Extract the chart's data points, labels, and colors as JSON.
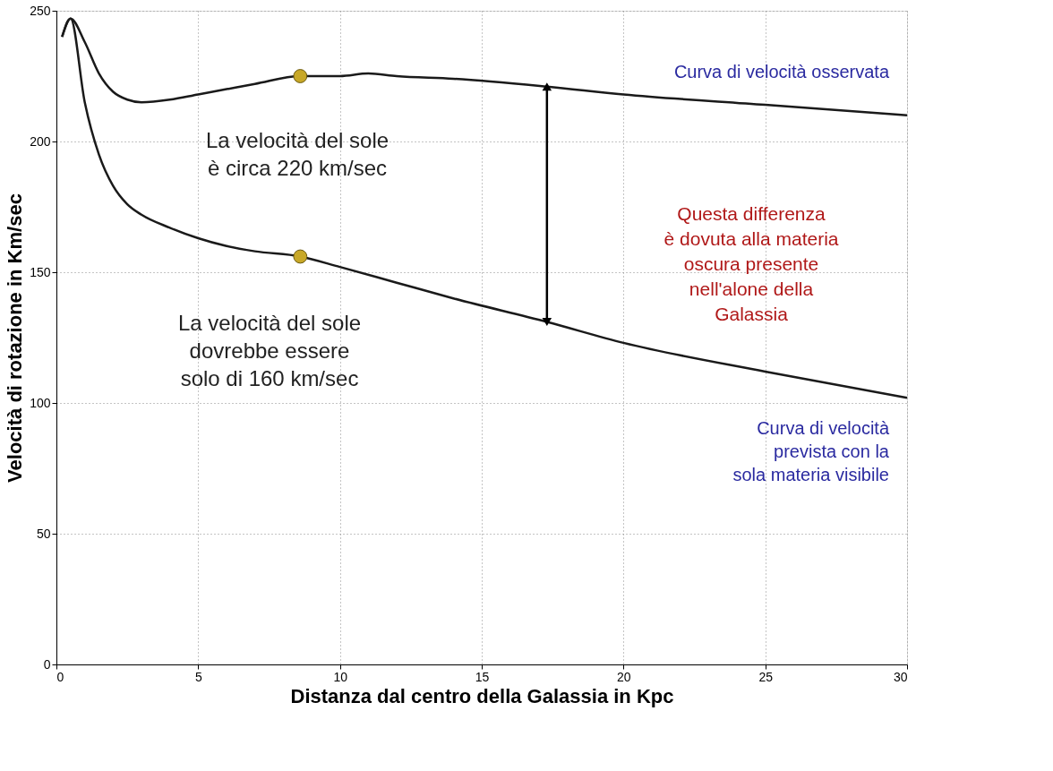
{
  "chart_data": {
    "type": "line",
    "xlabel": "Distanza dal centro della Galassia in Kpc",
    "ylabel": "Velocità di rotazione in Km/sec",
    "xlim": [
      0,
      30
    ],
    "xticks": [
      0,
      5,
      10,
      15,
      20,
      25,
      30
    ],
    "ylim": [
      0,
      250
    ],
    "yticks": [
      0,
      50,
      100,
      150,
      200,
      250
    ],
    "grid": true,
    "line_style": "solid",
    "series": [
      {
        "name": "Curva di velocità osservata",
        "color": "#1a1a1a",
        "x": [
          0.2,
          0.5,
          1,
          1.5,
          2,
          2.5,
          3,
          4,
          5,
          6,
          7,
          8.6,
          10,
          11,
          12,
          14,
          17.3,
          20,
          25,
          30
        ],
        "values": [
          240,
          247,
          238,
          226,
          219,
          216,
          215,
          216,
          218,
          220,
          222,
          225,
          225,
          226,
          225,
          224,
          221,
          218,
          214,
          210
        ]
      },
      {
        "name": "Curva di velocità\nprevista con la\nsola materia visibile",
        "color": "#1a1a1a",
        "x": [
          0.2,
          0.5,
          1,
          1.5,
          2,
          2.5,
          3,
          4,
          5,
          6,
          7,
          8.6,
          10,
          12,
          14,
          17.3,
          20,
          25,
          30
        ],
        "values": [
          240,
          247,
          215,
          195,
          183,
          176,
          172,
          167,
          163,
          160,
          158,
          156,
          152,
          146,
          140,
          131,
          123,
          112,
          102
        ]
      },
      {
        "type": "scatter",
        "color": "#c8a828",
        "x": [
          8.6,
          8.6
        ],
        "values": [
          225,
          156
        ]
      },
      {
        "type": "line",
        "color": "#000000",
        "marker": "triangle",
        "x": [
          17.3,
          17.3
        ],
        "values": [
          221,
          131
        ]
      }
    ],
    "annotations": [
      "La velocità del sole\nè circa 220 km/sec",
      "La velocità del sole\ndovrebbe essere\nsolo di 160 km/sec",
      "Questa differenza\nè dovuta alla materia\noscura presente\nnell'alone della\nGalassia"
    ]
  }
}
